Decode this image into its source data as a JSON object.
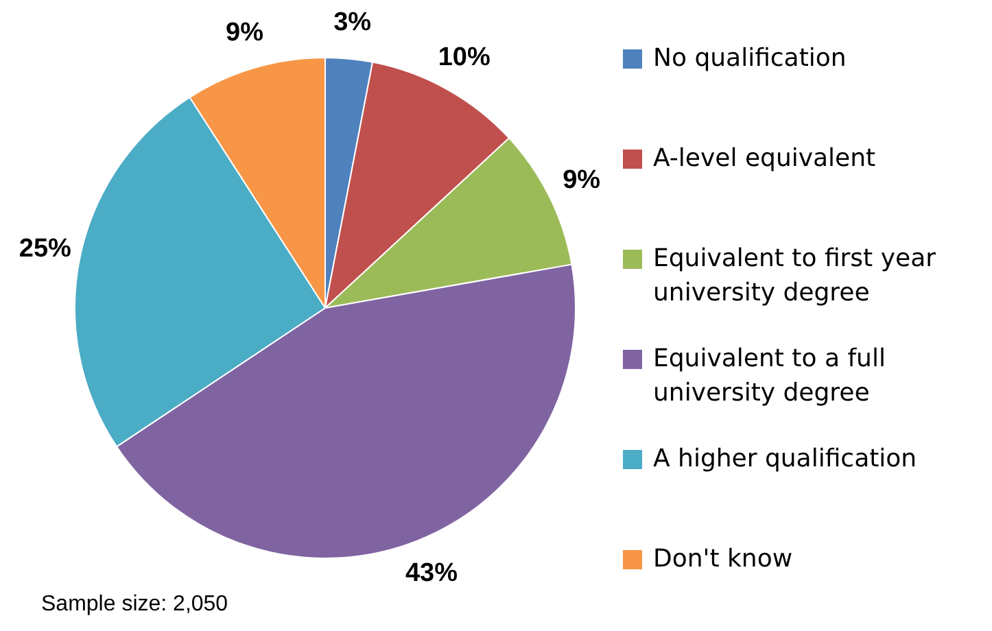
{
  "chart_data": {
    "type": "pie",
    "categories": [
      "No qualification",
      "A-level equivalent",
      "Equivalent to first year university degree",
      "Equivalent to a full university degree",
      "A higher qualification",
      "Don't know"
    ],
    "values": [
      3,
      10,
      9,
      43,
      25,
      9
    ],
    "colors": [
      "#4f81bd",
      "#c0504d",
      "#9bbb59",
      "#8064a2",
      "#4bacc6",
      "#f79646"
    ],
    "value_labels": [
      "3%",
      "10%",
      "9%",
      "43%",
      "25%",
      "9%"
    ],
    "legend": "right",
    "annotations": [
      "Sample size: 2,050"
    ]
  }
}
